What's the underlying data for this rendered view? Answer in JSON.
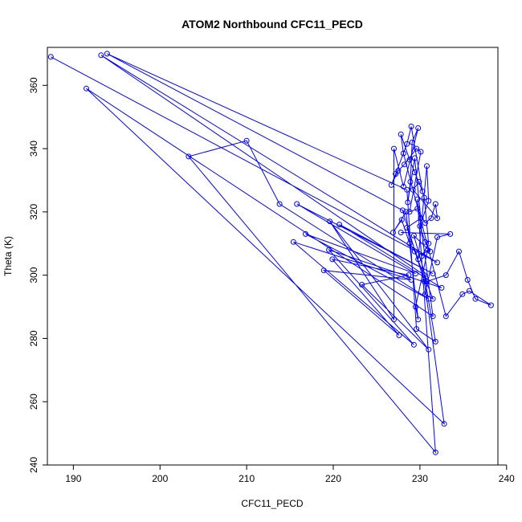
{
  "chart_data": {
    "type": "scatter",
    "title": "ATOM2 Northbound CFC11_PECD",
    "xlabel": "CFC11_PECD",
    "ylabel": "Theta (K)",
    "xlim": [
      187.0,
      239.0
    ],
    "ylim": [
      240.0,
      372.0
    ],
    "xticks": [
      190,
      200,
      210,
      220,
      230,
      240
    ],
    "yticks": [
      240,
      260,
      280,
      300,
      320,
      340,
      360
    ],
    "grid": false,
    "color": "#0000ff",
    "series": [
      {
        "points": [
          [
            187.4,
            369.0
          ],
          [
            232.0,
            304.0
          ],
          [
            193.2,
            369.5
          ],
          [
            230.5,
            300.0
          ],
          [
            231.8,
            279.0
          ],
          [
            229.6,
            283.0
          ],
          [
            228.5,
            327.0
          ],
          [
            193.9,
            370.0
          ],
          [
            228.0,
            320.5
          ],
          [
            230.5,
            298.0
          ],
          [
            232.8,
            253.0
          ],
          [
            191.5,
            359.0
          ],
          [
            231.5,
            287.0
          ],
          [
            229.7,
            324.0
          ],
          [
            231.8,
            244.0
          ],
          [
            203.3,
            337.5
          ],
          [
            210.0,
            342.5
          ],
          [
            213.8,
            322.5
          ],
          [
            231.0,
            292.5
          ],
          [
            216.8,
            313.0
          ],
          [
            229.5,
            300.5
          ],
          [
            215.8,
            322.5
          ],
          [
            231.5,
            300.5
          ],
          [
            220.7,
            316.0
          ],
          [
            232.5,
            296.0
          ],
          [
            219.5,
            308.0
          ],
          [
            229.3,
            278.0
          ],
          [
            215.4,
            310.5
          ],
          [
            229.0,
            298.5
          ],
          [
            218.9,
            301.5
          ],
          [
            227.6,
            281.0
          ],
          [
            219.9,
            305.0
          ],
          [
            228.7,
            300.0
          ],
          [
            223.3,
            297.0
          ],
          [
            231.0,
            276.5
          ],
          [
            219.6,
            317.0
          ],
          [
            227.0,
            286.0
          ],
          [
            227.0,
            340.0
          ],
          [
            228.1,
            328.0
          ],
          [
            229.8,
            346.5
          ],
          [
            229.1,
            342.0
          ],
          [
            228.9,
            329.5
          ],
          [
            228.6,
            323.0
          ],
          [
            229.4,
            337.0
          ],
          [
            230.1,
            318.0
          ],
          [
            228.5,
            315.0
          ],
          [
            229.8,
            305.0
          ],
          [
            230.8,
            334.5
          ],
          [
            231.0,
            323.5
          ],
          [
            230.0,
            315.5
          ],
          [
            230.6,
            310.5
          ],
          [
            231.2,
            307.5
          ],
          [
            229.3,
            312.5
          ],
          [
            230.8,
            298.0
          ],
          [
            233.0,
            300.0
          ],
          [
            234.5,
            307.5
          ],
          [
            235.5,
            298.5
          ],
          [
            236.4,
            292.5
          ],
          [
            238.2,
            290.5
          ],
          [
            235.7,
            295.0
          ],
          [
            234.9,
            294.0
          ],
          [
            233.0,
            287.0
          ],
          [
            228.1,
            338.5
          ],
          [
            227.8,
            344.5
          ],
          [
            228.8,
            336.5
          ],
          [
            229.4,
            332.5
          ],
          [
            230.3,
            326.5
          ],
          [
            229.0,
            347.0
          ],
          [
            228.5,
            341.5
          ],
          [
            227.2,
            332.0
          ],
          [
            226.7,
            328.5
          ],
          [
            227.5,
            333.0
          ],
          [
            228.2,
            335.0
          ],
          [
            229.6,
            340.0
          ],
          [
            230.1,
            339.0
          ],
          [
            228.8,
            320.0
          ],
          [
            229.7,
            321.0
          ],
          [
            230.6,
            316.5
          ],
          [
            231.3,
            318.0
          ],
          [
            231.8,
            322.5
          ],
          [
            232.0,
            318.0
          ],
          [
            229.2,
            327.0
          ],
          [
            229.9,
            329.5
          ],
          [
            230.5,
            324.5
          ],
          [
            231.0,
            310.0
          ],
          [
            230.2,
            306.0
          ],
          [
            230.9,
            308.0
          ],
          [
            229.5,
            290.0
          ],
          [
            229.8,
            286.0
          ],
          [
            228.4,
            320.0
          ],
          [
            226.9,
            313.5
          ],
          [
            227.9,
            317.5
          ],
          [
            228.8,
            310.0
          ],
          [
            229.4,
            307.5
          ],
          [
            231.5,
            292.5
          ],
          [
            230.6,
            294.0
          ],
          [
            232.0,
            312.0
          ],
          [
            233.5,
            313.0
          ],
          [
            227.8,
            313.5
          ]
        ]
      }
    ]
  }
}
